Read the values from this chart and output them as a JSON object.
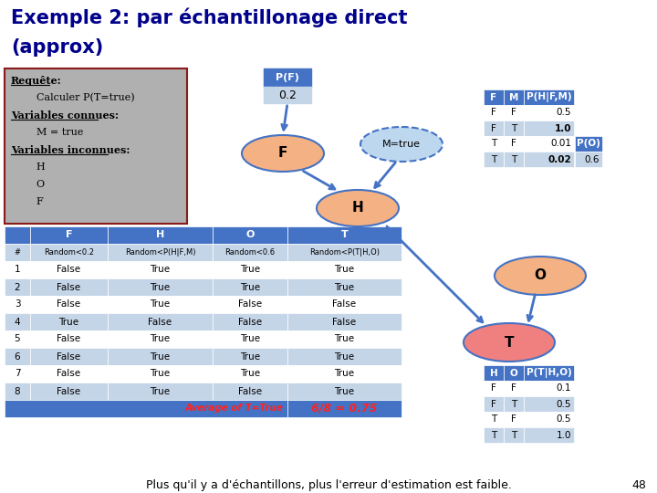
{
  "title_line1": "Exemple 2: par échantillonage direct",
  "title_line2": "(approx)",
  "bg_color": "#ffffff",
  "left_box_text": [
    "Requête:",
    "        Calculer P(T=true)",
    "Variables connues:",
    "        M = true",
    "Variables inconnues:",
    "        H",
    "        O",
    "        F"
  ],
  "left_box_underline": [
    "Requête:",
    "Variables connues:",
    "Variables inconnues:"
  ],
  "pf_box_color": "#4472c4",
  "pf_value_bg": "#c9d9ee",
  "pf_box_text": "P(F)",
  "pf_value": "0.2",
  "node_F_color": "#f4b183",
  "node_H_color": "#f4b183",
  "node_O_color": "#f4b183",
  "node_T_color": "#f08080",
  "node_M_color": "#bdd7ee",
  "node_border_color": "#4472c4",
  "arrow_color": "#4472c4",
  "table_header_color": "#4472c4",
  "table_alt_color": "#c5d5e8",
  "table_white_color": "#dde4ef",
  "table_cols": [
    "F",
    "H",
    "O",
    "T"
  ],
  "table_header_row": [
    "#",
    "Random<0.2",
    "Random<P(H|F,M)",
    "Random<0.6",
    "Random<P(T|H,O)"
  ],
  "table_data": [
    [
      "1",
      "False",
      "True",
      "True",
      "True"
    ],
    [
      "2",
      "False",
      "True",
      "True",
      "True"
    ],
    [
      "3",
      "False",
      "True",
      "False",
      "False"
    ],
    [
      "4",
      "True",
      "False",
      "False",
      "False"
    ],
    [
      "5",
      "False",
      "True",
      "True",
      "True"
    ],
    [
      "6",
      "False",
      "True",
      "True",
      "True"
    ],
    [
      "7",
      "False",
      "True",
      "True",
      "True"
    ],
    [
      "8",
      "False",
      "True",
      "False",
      "True"
    ]
  ],
  "footer_left": "Average of T=True",
  "footer_right": "6/8 = 0.75",
  "bottom_text": "Plus qu'il y a d'échantillons, plus l'erreur d'estimation est faible.",
  "phfm_header": [
    "F",
    "M",
    "P(H|F,M)"
  ],
  "phfm_data": [
    [
      "F",
      "F",
      "0.5",
      false
    ],
    [
      "F",
      "T",
      "1.0",
      true
    ],
    [
      "T",
      "F",
      "0.01",
      false
    ],
    [
      "T",
      "T",
      "0.02",
      true
    ]
  ],
  "po_value": "0.6",
  "ptho_header": [
    "H",
    "O",
    "P(T|H,O)"
  ],
  "ptho_data": [
    [
      "F",
      "F",
      "0.1"
    ],
    [
      "F",
      "T",
      "0.5"
    ],
    [
      "T",
      "F",
      "0.5"
    ],
    [
      "T",
      "T",
      "1.0"
    ]
  ],
  "page_number": "48"
}
